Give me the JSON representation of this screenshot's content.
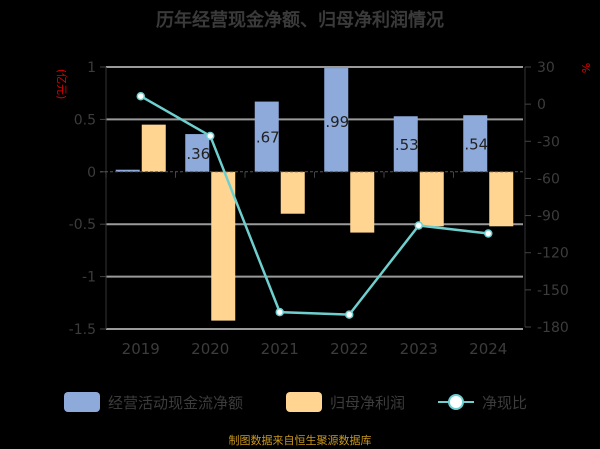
{
  "title": "历年经营现金净额、归母净利润情况",
  "left_axis": {
    "unit": "(亿元)",
    "ticks": [
      "1",
      "0.5",
      "0",
      "-0.5",
      "-1",
      "-1.5"
    ]
  },
  "right_axis": {
    "unit": "%",
    "ticks": [
      "30",
      "0",
      "-30",
      "-60",
      "-90",
      "-120",
      "-150",
      "-180"
    ]
  },
  "x_labels": [
    "2019",
    "2020",
    "2021",
    "2022",
    "2023",
    "2024"
  ],
  "bar_labels": [
    "",
    ".36",
    ".67",
    ".99",
    ".53",
    ".54"
  ],
  "legend": {
    "ocf": "经营活动现金流净额",
    "profit": "归母净利润",
    "ratio": "净现比"
  },
  "source": "制图数据来自恒生聚源数据库",
  "colors": {
    "ocf": "#8eaadb",
    "profit": "#ffd591",
    "ratio": "#6fcfcf",
    "grid": "#9a9a9a",
    "unit": "#e00000",
    "source": "#c8961e"
  },
  "chart_data": {
    "type": "bar",
    "title": "历年经营现金净额、归母净利润情况",
    "categories": [
      "2019",
      "2020",
      "2021",
      "2022",
      "2023",
      "2024"
    ],
    "series": [
      {
        "name": "经营活动现金流净额",
        "type": "bar",
        "axis": "left",
        "values": [
          0.02,
          0.36,
          0.67,
          0.99,
          0.53,
          0.54
        ]
      },
      {
        "name": "归母净利润",
        "type": "bar",
        "axis": "left",
        "values": [
          0.45,
          -1.42,
          -0.4,
          -0.58,
          -0.52,
          -0.52
        ]
      },
      {
        "name": "净现比",
        "type": "line",
        "axis": "right",
        "values": [
          6.4,
          -25.7,
          -168.0,
          -170.0,
          -98.0,
          -104.5
        ]
      }
    ],
    "xlabel": "",
    "ylabel": "(亿元)",
    "y2label": "%",
    "ylim": [
      -1.5,
      1
    ],
    "y2lim": [
      -180,
      30
    ],
    "grid": true,
    "legend_position": "bottom"
  }
}
